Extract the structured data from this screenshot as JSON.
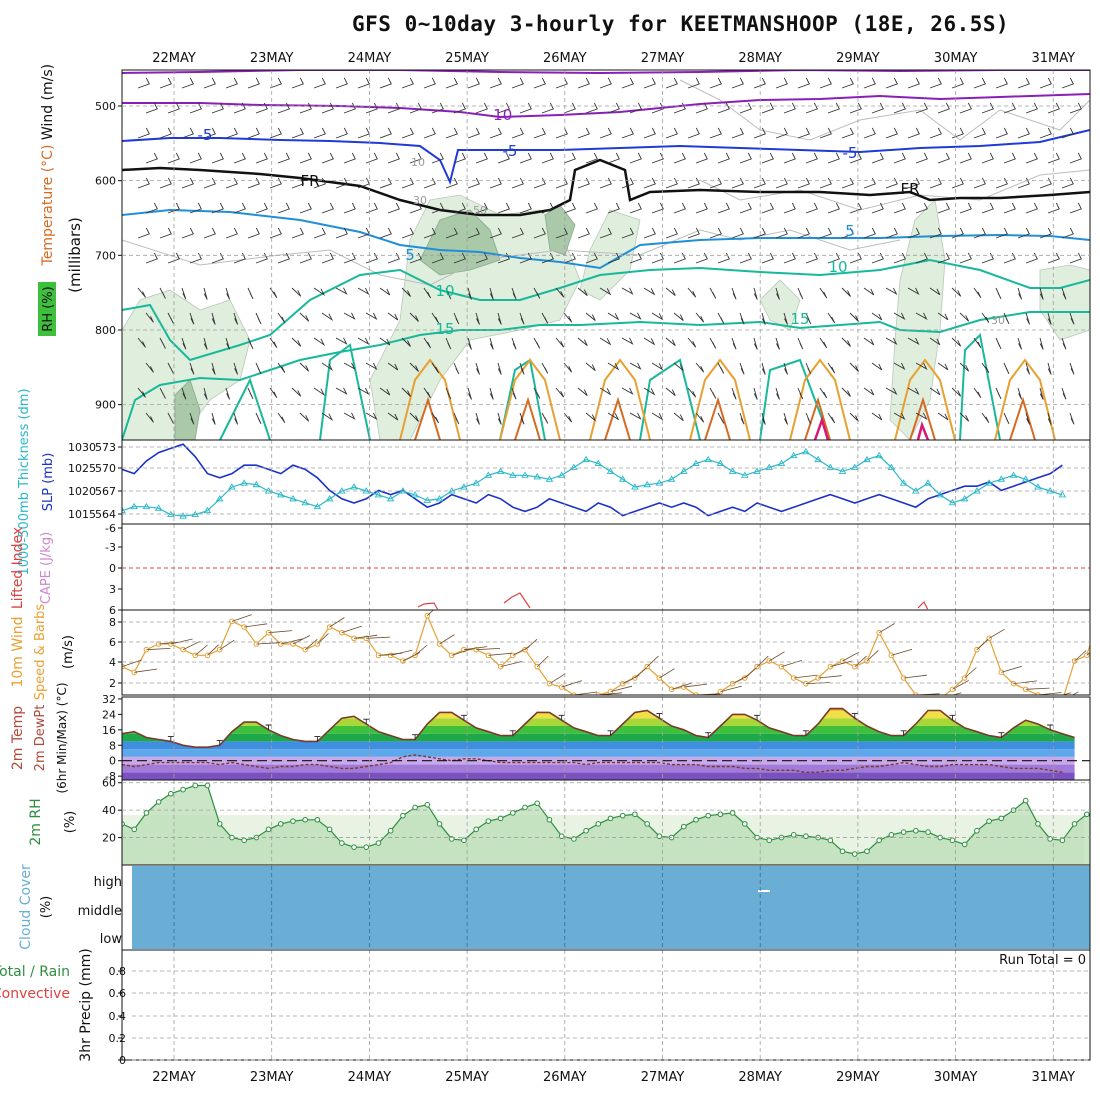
{
  "title": "GFS 0~10day 3-hourly for KEETMANSHOOP (18E, 26.5S)",
  "dates": [
    "22MAY",
    "23MAY",
    "24MAY",
    "25MAY",
    "26MAY",
    "27MAY",
    "28MAY",
    "29MAY",
    "30MAY",
    "31MAY"
  ],
  "colors": {
    "purple": "#8a1fb8",
    "blue": "#1f3ad6",
    "lightblue": "#1f8fd8",
    "teal": "#18b89a",
    "orange": "#e8a030",
    "darkorange": "#d86a20",
    "magenta": "#d81878",
    "rh_green": "#2d8f3e",
    "slp_blue": "#1a32c8",
    "thick_cyan": "#2ab8c8",
    "wind_orange": "#e8a030",
    "cape_red": "#e04040",
    "cloud_blue": "#6aaed6"
  },
  "panels": {
    "upper": {
      "ylabel_rh": "RH (%)",
      "ylabel_temp": "Temperature (°C)",
      "ylabel_wind": "Wind (m/s)",
      "ylabel_press": "(millibars)",
      "yticks": [
        500,
        600,
        700,
        800,
        900
      ],
      "contour_labels": [
        "-10",
        "-5",
        "-5",
        "-5",
        "FR",
        "FR",
        "5",
        "5",
        "10",
        "10",
        "15",
        "15",
        "10",
        "30",
        "50",
        "30"
      ]
    },
    "slp": {
      "ylabel_thick": "1000-500mb Thickness (dm)",
      "ylabel_slp": "SLP (mb)",
      "left_ticks": [
        573,
        570,
        567,
        564
      ],
      "right_ticks": [
        1030,
        1025,
        1020,
        1015
      ]
    },
    "li": {
      "ylabel_li": "Lifted Index",
      "ylabel_cape": "CAPE (J/kg)",
      "ticks": [
        "-6",
        "-3",
        "0",
        "3",
        "6"
      ]
    },
    "wind10": {
      "ylabel1": "10m Wind",
      "ylabel2": "Speed & Barbs",
      "ylabel3": "(m/s)",
      "ticks": [
        8,
        6,
        4,
        2
      ]
    },
    "temp": {
      "ylabel1": "2m Temp",
      "ylabel2": "2m DewPt",
      "ylabel3": "(6hr Min/Max) (°C)",
      "ticks": [
        "32",
        "24",
        "16",
        "8",
        "0",
        "-8"
      ]
    },
    "rh": {
      "ylabel": "2m RH",
      "unit": "(%)",
      "ticks": [
        60,
        40,
        20
      ]
    },
    "cloud": {
      "ylabel": "Cloud Cover",
      "unit": "(%)",
      "levels": [
        "high",
        "middle",
        "low"
      ]
    },
    "precip": {
      "ylabel_total": "Total / Rain",
      "ylabel_conv": "Convective",
      "ylabel_main": "3hr Precip (mm)",
      "ticks": [
        "0.8",
        "0.6",
        "0.4",
        "0.2",
        "0"
      ],
      "run_total": "Run Total = 0"
    }
  },
  "chart_data": [
    {
      "type": "line",
      "panel": "slp_thickness",
      "x_start": "21MAY 12Z",
      "x_step_hours": 3,
      "series": [
        {
          "name": "SLP (mb)",
          "ylim": [
            1012,
            1032
          ],
          "values": [
            1025,
            1024,
            1027,
            1029,
            1030,
            1031,
            1028,
            1024,
            1023,
            1024,
            1026,
            1026,
            1025,
            1024,
            1026,
            1025,
            1023,
            1020,
            1018,
            1017,
            1018,
            1020,
            1019,
            1020,
            1018,
            1016,
            1017,
            1019,
            1018,
            1017,
            1019,
            1018,
            1016,
            1015,
            1016,
            1018,
            1017,
            1016,
            1015,
            1017,
            1016,
            1014,
            1015,
            1016,
            1017,
            1016,
            1017,
            1016,
            1014,
            1015,
            1016,
            1015,
            1017,
            1016,
            1015,
            1016,
            1017,
            1018,
            1019,
            1018,
            1017,
            1018,
            1019,
            1018,
            1017,
            1016,
            1018,
            1019,
            1020,
            1021,
            1021,
            1022,
            1020,
            1021,
            1022,
            1023,
            1024,
            1026
          ]
        },
        {
          "name": "1000-500mb Thickness (dm)",
          "ylim": [
            562.8,
            573.5
          ],
          "values": [
            564.5,
            565,
            565,
            564.8,
            564,
            563.8,
            564,
            564.5,
            566,
            567.5,
            568,
            567.8,
            567,
            566.5,
            566,
            565.5,
            565,
            566,
            567,
            567.5,
            567,
            566.5,
            566,
            567,
            566.5,
            565.8,
            566,
            567,
            567.5,
            568,
            569,
            569.5,
            569,
            569,
            568.8,
            568.5,
            569,
            570,
            571,
            570.5,
            569.5,
            568.5,
            567.5,
            567.8,
            568,
            568.5,
            569.5,
            570.5,
            571,
            570.5,
            569.5,
            569,
            569.5,
            570,
            570.5,
            571.5,
            572,
            571,
            570,
            569.5,
            570,
            571,
            571.5,
            570,
            568,
            567,
            568,
            566.5,
            565.5,
            566,
            567,
            568,
            568.5,
            569,
            568.5,
            567.5,
            567,
            566.5
          ]
        }
      ]
    },
    {
      "type": "line",
      "panel": "wind10",
      "x_start": "21MAY 12Z",
      "x_step_hours": 3,
      "series": [
        {
          "name": "10m Wind Speed (m/s)",
          "ylim": [
            1.5,
            9
          ],
          "values": [
            4,
            3.5,
            5.5,
            6,
            6,
            5.5,
            5,
            5,
            5.5,
            8,
            7.5,
            6,
            7,
            6,
            6,
            5.5,
            6,
            7.5,
            7,
            6.5,
            6.5,
            5,
            5,
            4.5,
            5,
            8.5,
            6,
            5,
            5.5,
            5.5,
            5,
            4,
            5,
            5.5,
            4,
            2.5,
            2.2,
            1.5,
            1.3,
            1.5,
            1.8,
            2.5,
            3,
            4,
            3,
            2,
            2.2,
            1.5,
            1.2,
            1.8,
            2.5,
            3,
            4,
            4.5,
            4,
            3,
            2.5,
            3,
            4,
            4.5,
            4,
            4.5,
            7,
            5,
            3,
            1.5,
            1.3,
            1.2,
            2,
            3,
            5.5,
            6.5,
            3.5,
            2.5,
            2,
            1.5,
            1.2,
            1,
            4.5,
            5,
            8.5,
            6,
            3.5
          ]
        }
      ]
    },
    {
      "type": "area",
      "panel": "temp",
      "x_start": "21MAY 12Z",
      "x_step_hours": 3,
      "ylim": [
        -10,
        33
      ],
      "series": [
        {
          "name": "2m Temp (°C)",
          "values": [
            14,
            15,
            12,
            11,
            10,
            8,
            7,
            7,
            8,
            15,
            20,
            20,
            16,
            13,
            11,
            10,
            10,
            16,
            22,
            23,
            19,
            15,
            13,
            11,
            11,
            19,
            25,
            25,
            21,
            17,
            15,
            13,
            13,
            19,
            25,
            25,
            21,
            17,
            15,
            13,
            13,
            19,
            25,
            26,
            22,
            18,
            16,
            13,
            12,
            18,
            24,
            24,
            21,
            17,
            15,
            13,
            13,
            19,
            27,
            27,
            22,
            18,
            15,
            13,
            13,
            19,
            26,
            26,
            21,
            17,
            15,
            13,
            12,
            17,
            21,
            19,
            16,
            14,
            12
          ]
        },
        {
          "name": "2m DewPt (°C)",
          "values": [
            -2,
            -3,
            -2,
            -1,
            -1,
            -1,
            -1,
            -1,
            -2,
            -1,
            -2,
            -3,
            -4,
            -3,
            -3,
            -2,
            -2,
            -3,
            -4,
            -4,
            -3,
            -2,
            -1,
            2,
            3,
            2,
            1,
            0,
            1,
            1,
            0,
            -1,
            -1,
            -1,
            -1,
            -1,
            -1,
            -1,
            -2,
            -1,
            -1,
            -1,
            -1,
            -1,
            -1,
            -2,
            -2,
            -2,
            -3,
            -3,
            -3,
            -4,
            -4,
            -5,
            -5,
            -5,
            -6,
            -6,
            -5,
            -5,
            -4,
            -3,
            -3,
            -2,
            -1,
            -2,
            -3,
            -3,
            -2,
            -2,
            -2,
            -2,
            -3,
            -4,
            -4,
            -4,
            -5,
            -6
          ]
        }
      ]
    },
    {
      "type": "area",
      "panel": "rh",
      "x_start": "21MAY 12Z",
      "x_step_hours": 3,
      "ylim": [
        0,
        62
      ],
      "series": [
        {
          "name": "2m RH (%)",
          "values": [
            30,
            26,
            38,
            46,
            52,
            55,
            58,
            58,
            30,
            20,
            18,
            20,
            26,
            30,
            32,
            33,
            33,
            26,
            16,
            13,
            13,
            16,
            25,
            36,
            42,
            44,
            30,
            19,
            18,
            26,
            32,
            34,
            38,
            42,
            45,
            33,
            21,
            19,
            25,
            30,
            34,
            36,
            37,
            30,
            21,
            20,
            28,
            33,
            36,
            37,
            38,
            30,
            20,
            18,
            20,
            22,
            21,
            20,
            18,
            10,
            8,
            10,
            18,
            22,
            24,
            25,
            24,
            20,
            18,
            15,
            25,
            32,
            34,
            40,
            47,
            30,
            19,
            18,
            30,
            37,
            32,
            28,
            26
          ]
        }
      ]
    },
    {
      "type": "line",
      "panel": "lifted_index",
      "ylim": [
        6,
        -6
      ],
      "series": [
        {
          "name": "Lifted Index",
          "values": [
            0
          ]
        }
      ]
    },
    {
      "type": "bar",
      "panel": "precip",
      "ylim": [
        0,
        1
      ],
      "series": [
        {
          "name": "3hr Precip (mm)",
          "values": [
            0
          ]
        }
      ]
    }
  ]
}
